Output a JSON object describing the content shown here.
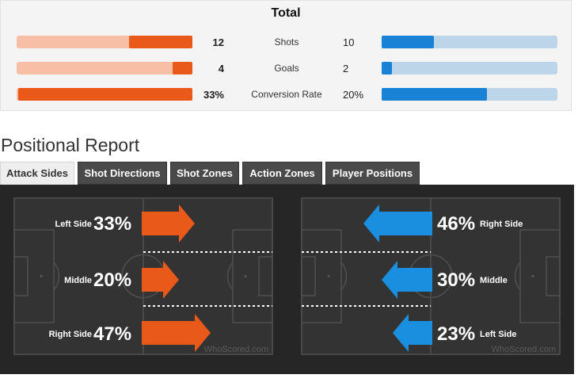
{
  "totals": {
    "title": "Total",
    "rows": [
      {
        "label": "Shots",
        "home_value": "12",
        "away_value": "10",
        "home_share": 0.36,
        "away_share": 0.3
      },
      {
        "label": "Goals",
        "home_value": "4",
        "away_value": "2",
        "home_share": 0.11,
        "away_share": 0.06
      },
      {
        "label": "Conversion Rate",
        "home_value": "33%",
        "away_value": "20%",
        "home_share": 0.99,
        "away_share": 0.6
      }
    ],
    "colors": {
      "home": "#e8591a",
      "home_light": "#f7bfa5",
      "away": "#1982d5",
      "away_light": "#bcd5e8"
    }
  },
  "section_title": "Positional Report",
  "tabs": [
    {
      "label": "Attack Sides",
      "active": true
    },
    {
      "label": "Shot Directions",
      "active": false
    },
    {
      "label": "Shot Zones",
      "active": false
    },
    {
      "label": "Action Zones",
      "active": false
    },
    {
      "label": "Player Positions",
      "active": false
    }
  ],
  "home_pitch": {
    "zones": [
      {
        "name": "Left Side",
        "value": "33%"
      },
      {
        "name": "Middle",
        "value": "20%"
      },
      {
        "name": "Right Side",
        "value": "47%"
      }
    ],
    "arrow_color": "#e8591a",
    "watermark": "WhoScored.com"
  },
  "away_pitch": {
    "zones": [
      {
        "name": "Right Side",
        "value": "46%"
      },
      {
        "name": "Middle",
        "value": "30%"
      },
      {
        "name": "Left Side",
        "value": "23%"
      }
    ],
    "arrow_color": "#1a8fe0",
    "watermark": "WhoScored.com"
  }
}
